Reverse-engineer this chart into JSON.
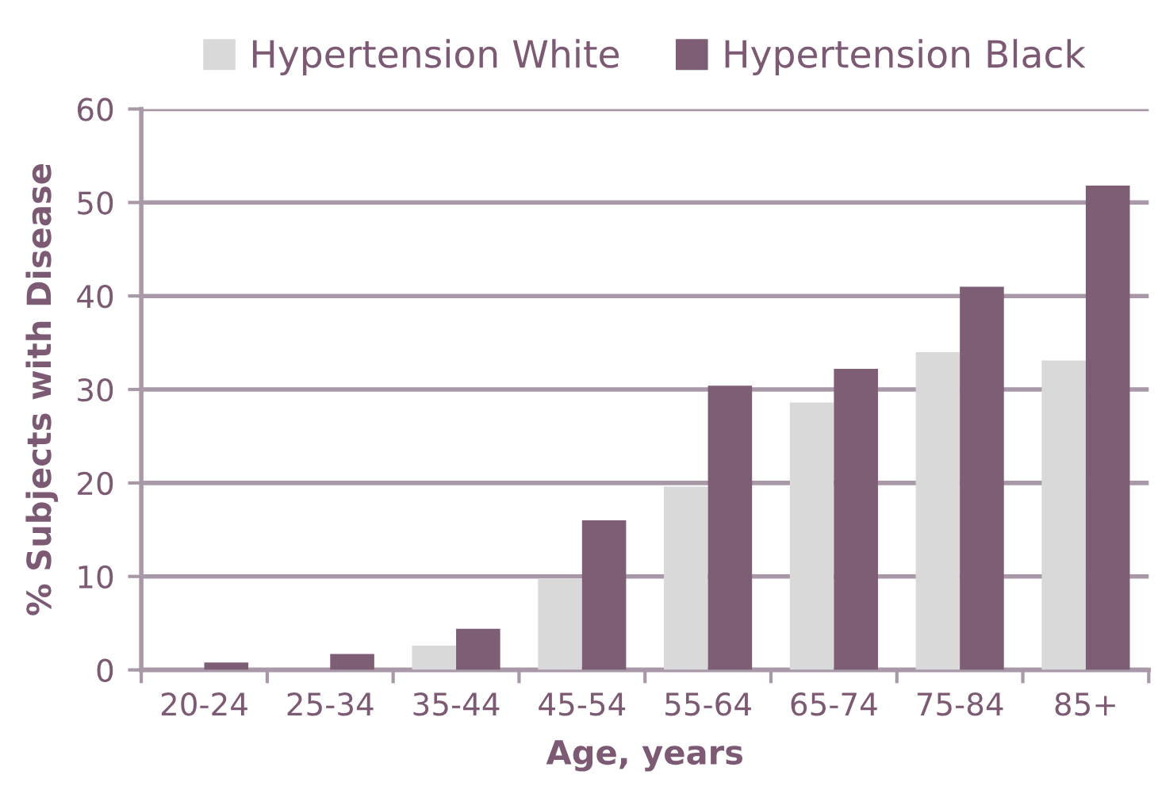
{
  "chart_data": {
    "type": "bar",
    "xlabel": "Age, years",
    "ylabel": "% Subjects with Disease",
    "categories": [
      "20-24",
      "25-34",
      "35-44",
      "45-54",
      "55-64",
      "65-74",
      "75-84",
      "85+"
    ],
    "series": [
      {
        "name": "Hypertension White",
        "color": "#d9d9d9",
        "values": [
          0,
          0,
          2.6,
          9.8,
          19.6,
          28.6,
          34.0,
          33.1
        ]
      },
      {
        "name": "Hypertension Black",
        "color": "#7e5e74",
        "values": [
          0.8,
          1.7,
          4.4,
          16.0,
          30.4,
          32.2,
          41.0,
          51.8
        ]
      }
    ],
    "ylim": [
      0,
      60
    ],
    "yticks": [
      0,
      10,
      20,
      30,
      40,
      50,
      60
    ],
    "grid": "y",
    "legend": "top"
  }
}
